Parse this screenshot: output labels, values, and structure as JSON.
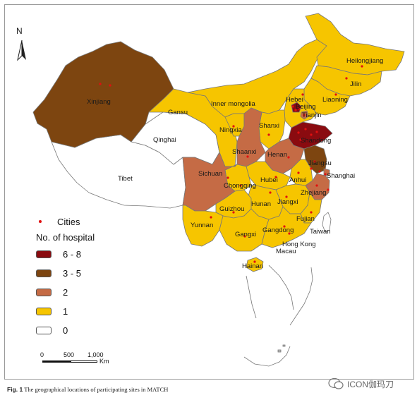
{
  "colors": {
    "range_6_8": "#8a0b10",
    "range_3_5": "#7d4510",
    "range_2": "#c56b45",
    "range_1": "#f6c500",
    "none": "#ffffff",
    "city": "#e01010"
  },
  "north": "N",
  "legend": {
    "cities_label": "Cities",
    "title": "No. of hospital",
    "items": [
      {
        "label": "6 - 8",
        "color": "#8a0b10"
      },
      {
        "label": "3 - 5",
        "color": "#7d4510"
      },
      {
        "label": "2",
        "color": "#c56b45"
      },
      {
        "label": "1",
        "color": "#f6c500"
      },
      {
        "label": "0",
        "color": "#ffffff"
      }
    ]
  },
  "scale": {
    "t0": "0",
    "t1": "500",
    "t2": "1,000",
    "unit": "Km"
  },
  "regions": {
    "xinjiang": {
      "name": "Xinjiang",
      "hospitals": "3 - 5"
    },
    "tibet": {
      "name": "Tibet",
      "hospitals": "0"
    },
    "qinghai": {
      "name": "Qinghai",
      "hospitals": "0"
    },
    "gansu": {
      "name": "Gansu",
      "hospitals": "1"
    },
    "inner_mongolia": {
      "name": "Inner mongolia",
      "hospitals": "1"
    },
    "heilongjiang": {
      "name": "Heilongjiang",
      "hospitals": "1"
    },
    "jilin": {
      "name": "Jilin",
      "hospitals": "1"
    },
    "liaoning": {
      "name": "Liaoning",
      "hospitals": "1"
    },
    "hebei": {
      "name": "Hebei",
      "hospitals": "1"
    },
    "beijing": {
      "name": "Beijing",
      "hospitals": "6 - 8"
    },
    "tianjin": {
      "name": "Tianjin",
      "hospitals": "2"
    },
    "ningxia": {
      "name": "Ningxia",
      "hospitals": "1"
    },
    "shanxi": {
      "name": "Shanxi",
      "hospitals": "1"
    },
    "shandong": {
      "name": "Shandong",
      "hospitals": "6 - 8"
    },
    "shaanxi": {
      "name": "Shaanxi",
      "hospitals": "2"
    },
    "henan": {
      "name": "Henan",
      "hospitals": "2"
    },
    "jiangsu": {
      "name": "Jiangsu",
      "hospitals": "3 - 5"
    },
    "shanghai": {
      "name": "Shanghai",
      "hospitals": "2"
    },
    "anhui": {
      "name": "Anhui",
      "hospitals": "1"
    },
    "hubei": {
      "name": "Hubei",
      "hospitals": "1"
    },
    "sichuan": {
      "name": "Sichuan",
      "hospitals": "2"
    },
    "chongqing": {
      "name": "Chongqing",
      "hospitals": "1"
    },
    "zhejiang": {
      "name": "Zhejiang",
      "hospitals": "2"
    },
    "hunan": {
      "name": "Hunan",
      "hospitals": "1"
    },
    "jiangxi": {
      "name": "Jiangxi",
      "hospitals": "1"
    },
    "guizhou": {
      "name": "Guizhou",
      "hospitals": "1"
    },
    "yunnan": {
      "name": "Yunnan",
      "hospitals": "1"
    },
    "fujian": {
      "name": "Fujian",
      "hospitals": "1"
    },
    "taiwan": {
      "name": "Taiwan",
      "hospitals": "0"
    },
    "guangxi": {
      "name": "Gangxi",
      "hospitals": "1"
    },
    "guangdong": {
      "name": "Gangdong",
      "hospitals": "1"
    },
    "hong_kong": {
      "name": "Hong Kong",
      "hospitals": "1"
    },
    "macau": {
      "name": "Macau",
      "hospitals": "1"
    },
    "hainan": {
      "name": "Hainan",
      "hospitals": "1"
    }
  },
  "caption": {
    "fig": "Fig. 1",
    "text": "The geographical locations of participating sites in MATCH"
  },
  "watermark": "ICON伽玛刀"
}
